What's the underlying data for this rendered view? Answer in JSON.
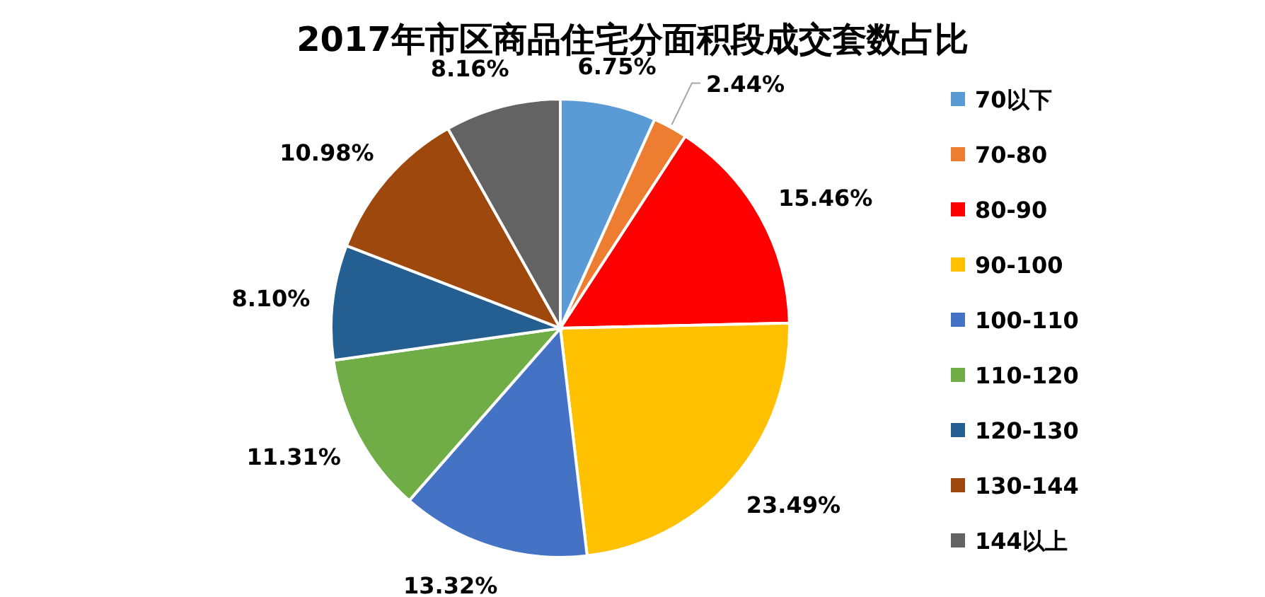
{
  "chart_data": {
    "type": "pie",
    "title": "2017年市区商品住宅分面积段成交套数占比",
    "categories": [
      "70以下",
      "70-80",
      "80-90",
      "90-100",
      "100-110",
      "110-120",
      "120-130",
      "130-144",
      "144以上"
    ],
    "values": [
      6.75,
      2.44,
      15.46,
      23.49,
      13.32,
      11.31,
      8.1,
      10.98,
      8.16
    ],
    "value_labels": [
      "6.75%",
      "2.44%",
      "15.46%",
      "23.49%",
      "13.32%",
      "11.31%",
      "8.10%",
      "10.98%",
      "8.16%"
    ],
    "colors": [
      "#5b9bd5",
      "#ed7d31",
      "#ff0000",
      "#ffc000",
      "#4472c4",
      "#70ad47",
      "#255e91",
      "#9e480e",
      "#636363"
    ],
    "legend": "right"
  }
}
